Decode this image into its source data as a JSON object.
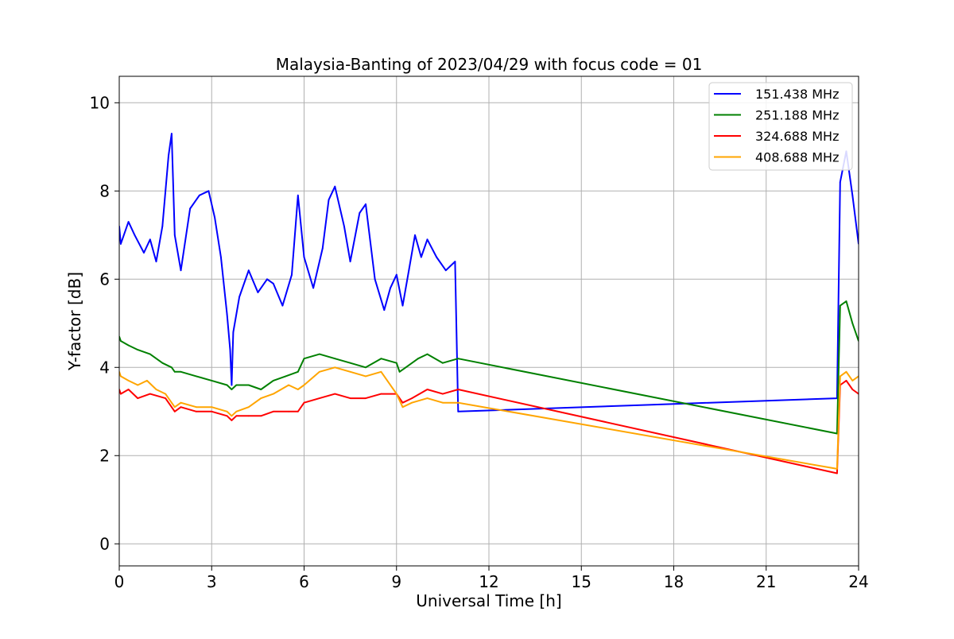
{
  "chart_data": {
    "type": "line",
    "title": "Malaysia-Banting of 2023/04/29 with focus code = 01",
    "xlabel": "Universal Time [h]",
    "ylabel": "Y-factor [dB]",
    "xlim": [
      0,
      24
    ],
    "ylim": [
      -0.5,
      10.6
    ],
    "xticks": [
      0,
      3,
      6,
      9,
      12,
      15,
      18,
      21,
      24
    ],
    "yticks": [
      0,
      2,
      4,
      6,
      8,
      10
    ],
    "grid": true,
    "legend_position": "top-right",
    "series": [
      {
        "name": "151.438 MHz",
        "color": "#0000ff",
        "x": [
          0,
          0.05,
          0.3,
          0.5,
          0.8,
          1.0,
          1.2,
          1.4,
          1.6,
          1.7,
          1.8,
          2.0,
          2.3,
          2.6,
          2.9,
          3.1,
          3.3,
          3.5,
          3.6,
          3.65,
          3.7,
          3.9,
          4.2,
          4.5,
          4.8,
          5.0,
          5.3,
          5.6,
          5.8,
          6.0,
          6.3,
          6.6,
          6.8,
          7.0,
          7.3,
          7.5,
          7.8,
          8.0,
          8.3,
          8.6,
          8.8,
          9.0,
          9.2,
          9.4,
          9.6,
          9.8,
          10.0,
          10.3,
          10.6,
          10.9,
          11.0,
          23.3,
          23.4,
          23.6,
          23.8,
          24.0
        ],
        "y": [
          7.2,
          6.8,
          7.3,
          7.0,
          6.6,
          6.9,
          6.4,
          7.2,
          8.8,
          9.3,
          7.0,
          6.2,
          7.6,
          7.9,
          8.0,
          7.4,
          6.5,
          5.2,
          4.4,
          3.6,
          4.8,
          5.6,
          6.2,
          5.7,
          6.0,
          5.9,
          5.4,
          6.1,
          7.9,
          6.5,
          5.8,
          6.7,
          7.8,
          8.1,
          7.2,
          6.4,
          7.5,
          7.7,
          6.0,
          5.3,
          5.8,
          6.1,
          5.4,
          6.2,
          7.0,
          6.5,
          6.9,
          6.5,
          6.2,
          6.4,
          3.0,
          3.3,
          8.2,
          8.9,
          7.9,
          6.8
        ]
      },
      {
        "name": "251.188 MHz",
        "color": "#008000",
        "x": [
          0,
          0.05,
          0.3,
          0.6,
          1.0,
          1.4,
          1.7,
          1.8,
          2.0,
          2.5,
          3.0,
          3.5,
          3.65,
          3.8,
          4.2,
          4.6,
          5.0,
          5.4,
          5.8,
          6.0,
          6.5,
          7.0,
          7.5,
          8.0,
          8.5,
          9.0,
          9.1,
          9.3,
          9.7,
          10.0,
          10.5,
          11.0,
          23.3,
          23.4,
          23.6,
          23.8,
          24.0
        ],
        "y": [
          4.7,
          4.6,
          4.5,
          4.4,
          4.3,
          4.1,
          4.0,
          3.9,
          3.9,
          3.8,
          3.7,
          3.6,
          3.5,
          3.6,
          3.6,
          3.5,
          3.7,
          3.8,
          3.9,
          4.2,
          4.3,
          4.2,
          4.1,
          4.0,
          4.2,
          4.1,
          3.9,
          4.0,
          4.2,
          4.3,
          4.1,
          4.2,
          2.5,
          5.4,
          5.5,
          5.0,
          4.6
        ]
      },
      {
        "name": "324.688 MHz",
        "color": "#ff0000",
        "x": [
          0,
          0.05,
          0.3,
          0.6,
          1.0,
          1.5,
          1.7,
          1.8,
          2.0,
          2.5,
          3.0,
          3.5,
          3.65,
          3.8,
          4.2,
          4.6,
          5.0,
          5.5,
          5.8,
          6.0,
          6.5,
          7.0,
          7.5,
          8.0,
          8.5,
          9.0,
          9.2,
          9.5,
          10.0,
          10.5,
          11.0,
          23.3,
          23.4,
          23.6,
          23.8,
          24.0
        ],
        "y": [
          3.5,
          3.4,
          3.5,
          3.3,
          3.4,
          3.3,
          3.1,
          3.0,
          3.1,
          3.0,
          3.0,
          2.9,
          2.8,
          2.9,
          2.9,
          2.9,
          3.0,
          3.0,
          3.0,
          3.2,
          3.3,
          3.4,
          3.3,
          3.3,
          3.4,
          3.4,
          3.2,
          3.3,
          3.5,
          3.4,
          3.5,
          1.6,
          3.6,
          3.7,
          3.5,
          3.4
        ]
      },
      {
        "name": "408.688 MHz",
        "color": "#ffa500",
        "x": [
          0,
          0.05,
          0.3,
          0.6,
          0.9,
          1.2,
          1.5,
          1.7,
          1.8,
          2.0,
          2.5,
          3.0,
          3.5,
          3.65,
          3.8,
          4.2,
          4.6,
          5.0,
          5.5,
          5.8,
          6.0,
          6.5,
          7.0,
          7.5,
          8.0,
          8.5,
          9.0,
          9.2,
          9.5,
          10.0,
          10.5,
          11.0,
          23.3,
          23.4,
          23.6,
          23.8,
          24.0
        ],
        "y": [
          3.9,
          3.8,
          3.7,
          3.6,
          3.7,
          3.5,
          3.4,
          3.2,
          3.1,
          3.2,
          3.1,
          3.1,
          3.0,
          2.9,
          3.0,
          3.1,
          3.3,
          3.4,
          3.6,
          3.5,
          3.6,
          3.9,
          4.0,
          3.9,
          3.8,
          3.9,
          3.4,
          3.1,
          3.2,
          3.3,
          3.2,
          3.2,
          1.7,
          3.8,
          3.9,
          3.7,
          3.8
        ]
      }
    ]
  }
}
